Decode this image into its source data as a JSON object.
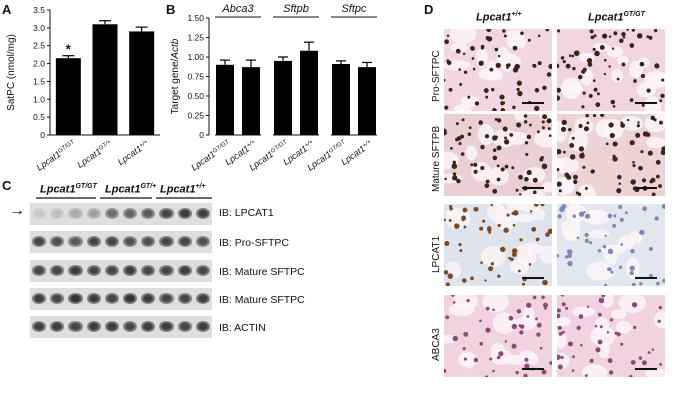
{
  "panel_letters": {
    "a": "A",
    "b": "B",
    "c": "C",
    "d": "D"
  },
  "chart_data": [
    {
      "panel": "A",
      "type": "bar",
      "ylabel": "SatPC (nmol/mg)",
      "ylim": [
        0,
        3.5
      ],
      "yticks": [
        "0",
        "0.5",
        "1.0",
        "1.5",
        "2.0",
        "2.5",
        "3.0",
        "3.5"
      ],
      "categories": [
        "Lpcat1GT/GT",
        "Lpcat1GT/+",
        "Lpcat1+/+"
      ],
      "category_labels": [
        {
          "base": "Lpcat1",
          "sup": "GT/GT"
        },
        {
          "base": "Lpcat1",
          "sup": "GT/+"
        },
        {
          "base": "Lpcat1",
          "sup": "+/+"
        }
      ],
      "values": [
        2.15,
        3.1,
        2.9
      ],
      "errors": [
        0.07,
        0.1,
        0.12
      ],
      "annotations": [
        "*",
        "",
        ""
      ]
    },
    {
      "panel": "B",
      "type": "bar",
      "ylabel": "Target gene/Actb",
      "ylim": [
        0,
        1.5
      ],
      "yticks": [
        "0",
        "0.25",
        "0.50",
        "0.75",
        "1.00",
        "1.25",
        "1.50"
      ],
      "groups": [
        "Abca3",
        "Sftpb",
        "Sftpc"
      ],
      "categories": [
        "Lpcat1GT/GT",
        "Lpcat1+/+"
      ],
      "category_labels": [
        {
          "base": "Lpcat1",
          "sup": "GT/GT"
        },
        {
          "base": "Lpcat1",
          "sup": "+/+"
        }
      ],
      "values": [
        [
          0.9,
          0.87
        ],
        [
          0.95,
          1.08
        ],
        [
          0.91,
          0.87
        ]
      ],
      "errors": [
        [
          0.06,
          0.09
        ],
        [
          0.05,
          0.11
        ],
        [
          0.04,
          0.06
        ]
      ]
    }
  ],
  "blot": {
    "genotypes": [
      {
        "base": "Lpcat1",
        "sup": "GT/GT"
      },
      {
        "base": "Lpcat1",
        "sup": "GT/+"
      },
      {
        "base": "Lpcat1",
        "sup": "+/+"
      }
    ],
    "arrow": "→",
    "rows": [
      {
        "label": "IB: LPCAT1"
      },
      {
        "label": "IB: Pro-SFTPC"
      },
      {
        "label": "IB: Mature SFTPC"
      },
      {
        "label": "IB: Mature SFTPC"
      },
      {
        "label": "IB: ACTIN"
      }
    ]
  },
  "histology": {
    "columns": [
      {
        "base": "Lpcat1",
        "sup": "+/+"
      },
      {
        "base": "Lpcat1",
        "sup": "GT/GT"
      }
    ],
    "rows": [
      {
        "label": "Pro-SFTPC"
      },
      {
        "label": "Mature SFTPB"
      },
      {
        "label": "LPCAT1"
      },
      {
        "label": "ABCA3"
      }
    ]
  }
}
